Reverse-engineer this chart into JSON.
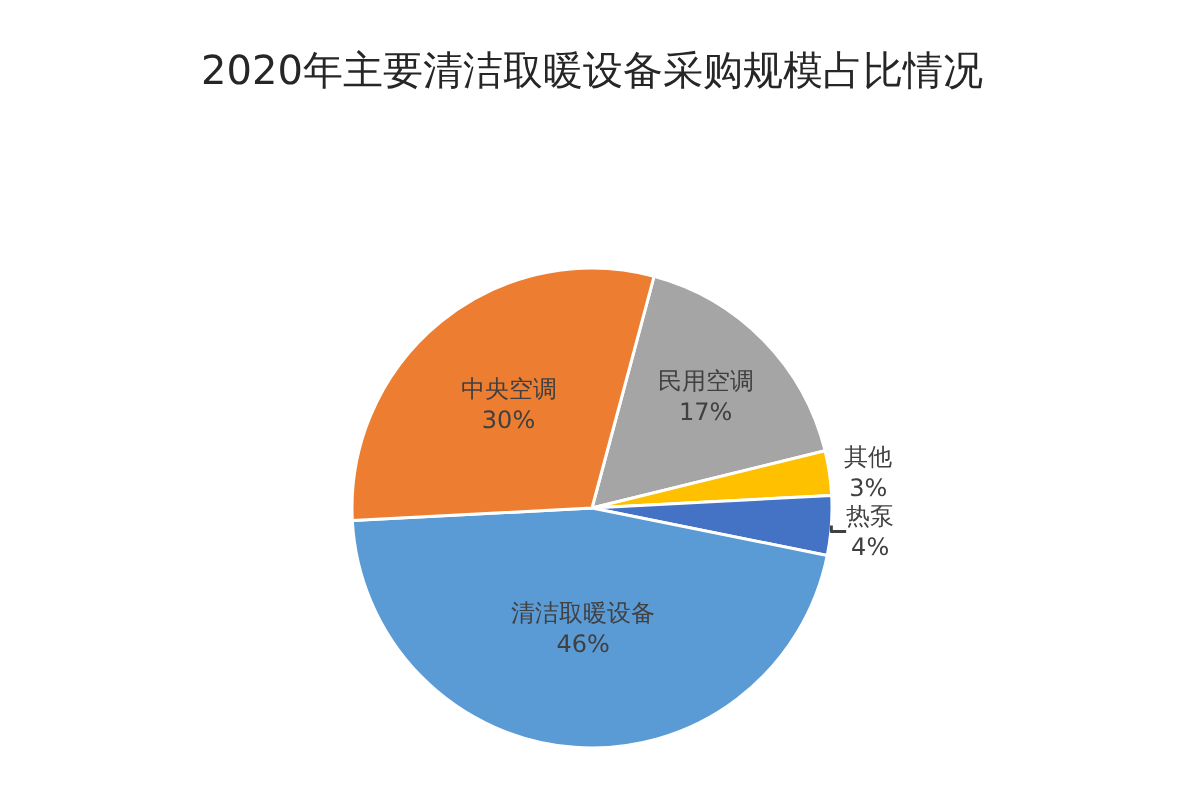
{
  "chart_data": {
    "type": "pie",
    "title": "2020年主要清洁取暖设备采购规模占比情况",
    "categories": [
      "民用空调",
      "其他",
      "热泵",
      "清洁取暖设备",
      "中央空调"
    ],
    "values": [
      17,
      3,
      4,
      46,
      30
    ],
    "value_labels": [
      "17%",
      "3%",
      "4%",
      "46%",
      "30%"
    ],
    "colors": [
      "#a5a5a5",
      "#ffc000",
      "#4472c4",
      "#5b9bd5",
      "#ed7d31"
    ],
    "legend": false
  }
}
